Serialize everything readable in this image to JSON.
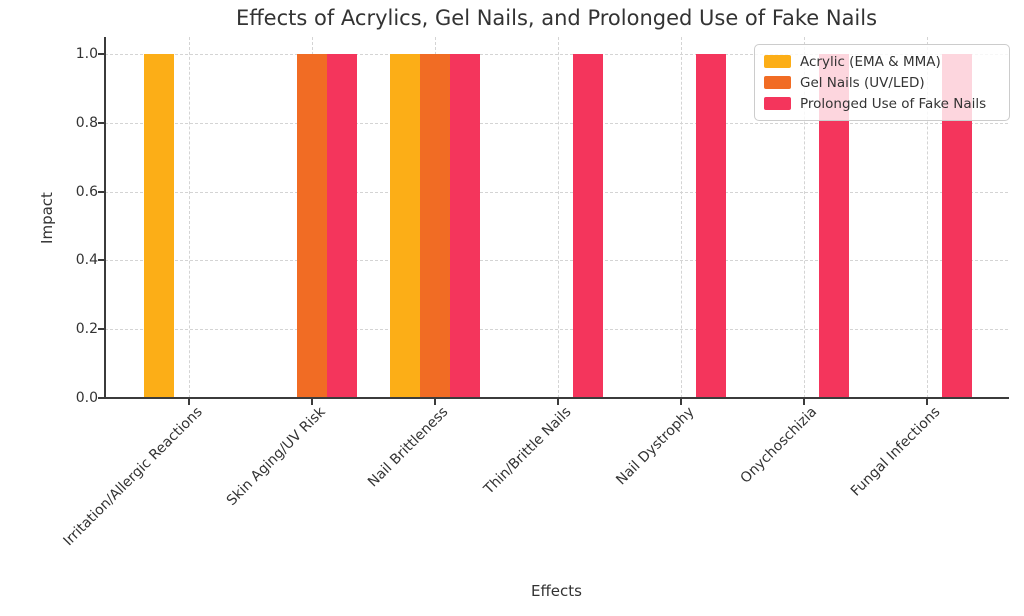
{
  "chart_data": {
    "type": "bar",
    "title": "Effects of Acrylics, Gel Nails, and Prolonged Use of Fake Nails",
    "xlabel": "Effects",
    "ylabel": "Impact",
    "categories": [
      "Irritation/Allergic Reactions",
      "Skin Aging/UV Risk",
      "Nail Brittleness",
      "Thin/Brittle Nails",
      "Nail Dystrophy",
      "Onychoschizia",
      "Fungal Infections"
    ],
    "series": [
      {
        "name": "Acrylic (EMA & MMA)",
        "color": "#FCAE17",
        "values": [
          1,
          0,
          1,
          0,
          0,
          0,
          0
        ]
      },
      {
        "name": "Gel Nails (UV/LED)",
        "color": "#F16C24",
        "values": [
          0,
          1,
          1,
          0,
          0,
          0,
          0
        ]
      },
      {
        "name": "Prolonged Use of Fake Nails",
        "color": "#F4355C",
        "values": [
          0,
          1,
          1,
          1,
          1,
          1,
          1
        ]
      }
    ],
    "ytick_labels": [
      "0.0",
      "0.2",
      "0.4",
      "0.6",
      "0.8",
      "1.0"
    ],
    "yticks": [
      0.0,
      0.2,
      0.4,
      0.6,
      0.8,
      1.0
    ],
    "ylim": [
      0,
      1.05
    ],
    "grid": "dashed",
    "legend_position": "upper right"
  }
}
